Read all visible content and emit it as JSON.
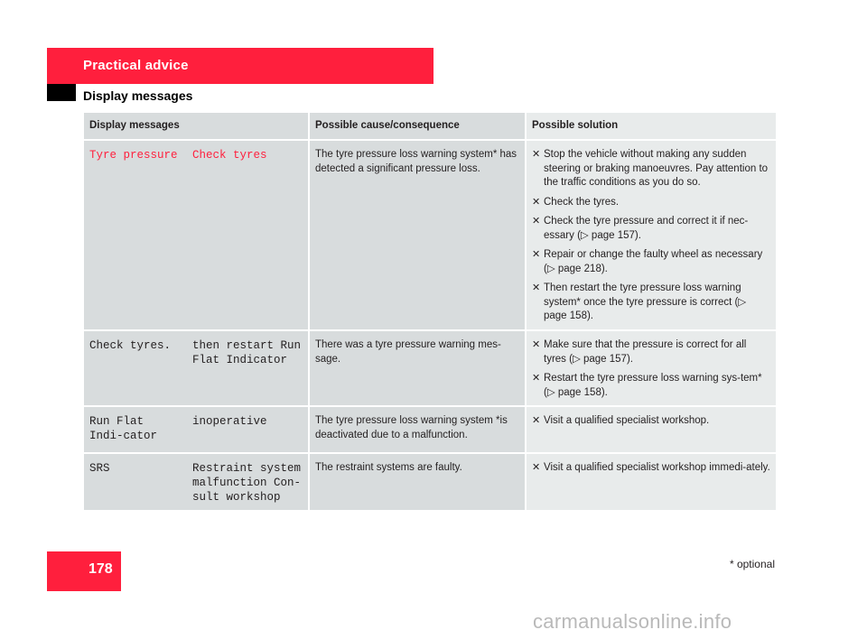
{
  "header": {
    "section_title": "Practical advice",
    "page_subtitle": "Display messages"
  },
  "table": {
    "headers": {
      "display": "Display messages",
      "cause": "Possible cause/consequence",
      "solution": "Possible solution"
    },
    "rows": [
      {
        "display_1": "Tyre pressure",
        "display_2": "Check tyres",
        "display_color": "red",
        "cause": "The tyre pressure loss warning system* has detected a significant pressure loss.",
        "solutions": [
          "Stop the vehicle without making any sudden steering or braking manoeuvres. Pay attention to the traffic conditions as you do so.",
          "Check the tyres.",
          "Check the tyre pressure and correct it if nec-essary (▷ page 157).",
          "Repair or change the faulty wheel as necessary (▷ page 218).",
          "Then restart the tyre pressure loss warning system* once the tyre pressure is correct (▷ page 158)."
        ]
      },
      {
        "display_1": "Check tyres.",
        "display_2": "then restart Run Flat Indicator",
        "display_color": "dark",
        "cause": "There was a tyre pressure warning mes-sage.",
        "solutions": [
          "Make sure that the pressure is correct for all tyres (▷ page 157).",
          "Restart the tyre pressure loss warning sys-tem* (▷ page 158)."
        ]
      },
      {
        "display_1": "Run Flat Indi-cator",
        "display_2": "inoperative",
        "display_color": "dark",
        "cause": "The tyre pressure loss warning system *is deactivated due to a malfunction.",
        "solutions": [
          "Visit a qualified specialist workshop."
        ]
      },
      {
        "display_1": "SRS",
        "display_2": "Restraint system malfunction Con-sult workshop",
        "display_color": "dark",
        "cause": "The restraint systems are faulty.",
        "solutions": [
          "Visit a qualified specialist workshop immedi-ately."
        ]
      }
    ]
  },
  "footer": {
    "page_number": "178",
    "footnote": "* optional",
    "watermark": "carmanualsonline.info"
  },
  "colors": {
    "accent_red": "#ff1f3d",
    "table_gray": "#d8dcdd",
    "table_light": "#e8ebeb"
  },
  "icons": {
    "bullet": "x-bullet-icon",
    "page_ref": "triangle-right-icon"
  }
}
